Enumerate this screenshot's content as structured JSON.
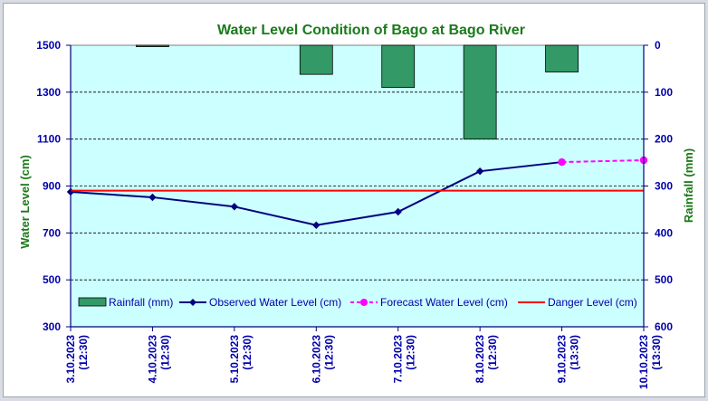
{
  "chart_data": {
    "type": "bar+line",
    "title": "Water Level Condition of Bago at Bago River",
    "y_left_label": "Water Level (cm)",
    "y_right_label": "Rainfall (mm)",
    "y_left_ticks": [
      "300",
      "500",
      "700",
      "900",
      "1100",
      "1300",
      "1500"
    ],
    "y_left_range": [
      300,
      1500
    ],
    "y_right_ticks": [
      "0",
      "100",
      "200",
      "300",
      "400",
      "500",
      "600"
    ],
    "y_right_range": [
      0,
      600
    ],
    "y_right_reversed": true,
    "categories": [
      {
        "date": "3.10.2023",
        "time": "(12:30)"
      },
      {
        "date": "4.10.2023",
        "time": "(12:30)"
      },
      {
        "date": "5.10.2023",
        "time": "(12:30)"
      },
      {
        "date": "6.10.2023",
        "time": "(12:30)"
      },
      {
        "date": "7.10.2023",
        "time": "(12:30)"
      },
      {
        "date": "8.10.2023",
        "time": "(12:30)"
      },
      {
        "date": "9.10.2023",
        "time": "(13:30)"
      },
      {
        "date": "10.10.2023",
        "time": "(13:30)"
      }
    ],
    "series": [
      {
        "name": "Rainfall (mm)",
        "kind": "bar",
        "axis": "right",
        "color": "#339966",
        "values": [
          null,
          3,
          null,
          62,
          90,
          200,
          57,
          null
        ]
      },
      {
        "name": "Observed Water Level (cm)",
        "kind": "line",
        "axis": "left",
        "color": "#000080",
        "values": [
          875,
          852,
          812,
          733,
          790,
          963,
          1002,
          null
        ]
      },
      {
        "name": "Forecast Water Level (cm)",
        "kind": "line-dashed",
        "axis": "left",
        "color": "#ff00ff",
        "values": [
          null,
          null,
          null,
          null,
          null,
          null,
          1002,
          1010
        ]
      },
      {
        "name": "Danger Level (cm)",
        "kind": "hline",
        "axis": "left",
        "color": "#ff0000",
        "value": 880
      }
    ],
    "legend_position": "bottom-inside",
    "grid": true
  }
}
